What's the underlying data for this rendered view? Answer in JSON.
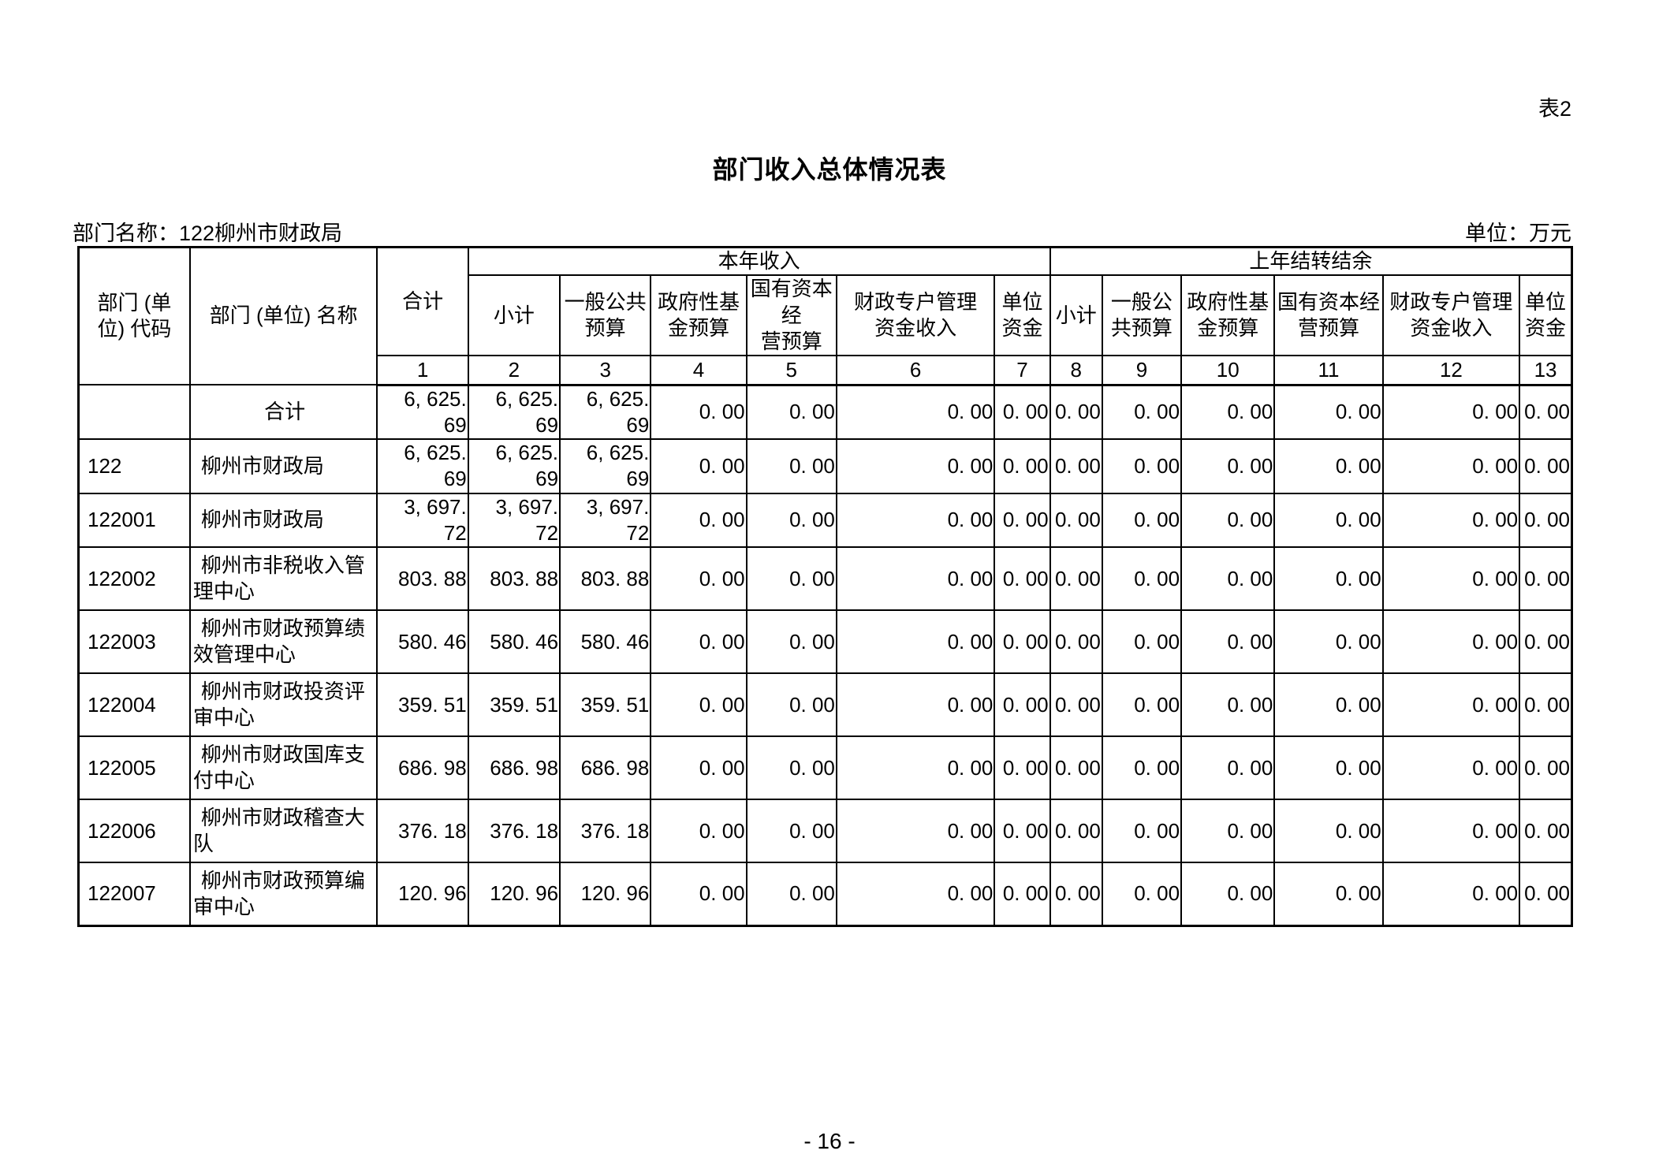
{
  "page": {
    "tag": "表2",
    "title": "部门收入总体情况表",
    "dept_label": "部门名称：122柳州市财政局",
    "unit_label": "单位：万元",
    "footer": "- 16 -"
  },
  "table": {
    "header": {
      "code": "部门 (单\n位) 代码",
      "name": "部门 (单位) 名称",
      "total": "合计",
      "group_current": "本年收入",
      "group_carryover": "上年结转结余",
      "sub_current": [
        "小计",
        "一般公共\n预算",
        "政府性基\n金预算",
        "国有资本经\n营预算",
        "财政专户管理\n资金收入",
        "单位\n资金"
      ],
      "sub_carryover": [
        "小计",
        "一般公\n共预算",
        "政府性基\n金预算",
        "国有资本经\n营预算",
        "财政专户管理\n资金收入",
        "单位\n资金"
      ],
      "col_numbers": [
        "1",
        "2",
        "3",
        "4",
        "5",
        "6",
        "7",
        "8",
        "9",
        "10",
        "11",
        "12",
        "13"
      ]
    },
    "rows": [
      {
        "code": "",
        "name": "合计",
        "name_align": "center",
        "values": [
          "6, 625. 69",
          "6, 625. 69",
          "6, 625. 69",
          "0. 00",
          "0. 00",
          "0. 00",
          "0. 00",
          "0. 00",
          "0. 00",
          "0. 00",
          "0. 00",
          "0. 00",
          "0. 00"
        ]
      },
      {
        "code": "122",
        "name": "柳州市财政局",
        "name_align": "left",
        "values": [
          "6, 625. 69",
          "6, 625. 69",
          "6, 625. 69",
          "0. 00",
          "0. 00",
          "0. 00",
          "0. 00",
          "0. 00",
          "0. 00",
          "0. 00",
          "0. 00",
          "0. 00",
          "0. 00"
        ]
      },
      {
        "code": "122001",
        "name": "柳州市财政局",
        "name_align": "left",
        "values": [
          "3, 697. 72",
          "3, 697. 72",
          "3, 697. 72",
          "0. 00",
          "0. 00",
          "0. 00",
          "0. 00",
          "0. 00",
          "0. 00",
          "0. 00",
          "0. 00",
          "0. 00",
          "0. 00"
        ]
      },
      {
        "code": "122002",
        "name": "柳州市非税收入管\n理中心",
        "name_align": "left",
        "values": [
          "803. 88",
          "803. 88",
          "803. 88",
          "0. 00",
          "0. 00",
          "0. 00",
          "0. 00",
          "0. 00",
          "0. 00",
          "0. 00",
          "0. 00",
          "0. 00",
          "0. 00"
        ]
      },
      {
        "code": "122003",
        "name": "柳州市财政预算绩\n效管理中心",
        "name_align": "left",
        "values": [
          "580. 46",
          "580. 46",
          "580. 46",
          "0. 00",
          "0. 00",
          "0. 00",
          "0. 00",
          "0. 00",
          "0. 00",
          "0. 00",
          "0. 00",
          "0. 00",
          "0. 00"
        ]
      },
      {
        "code": "122004",
        "name": "柳州市财政投资评\n审中心",
        "name_align": "left",
        "values": [
          "359. 51",
          "359. 51",
          "359. 51",
          "0. 00",
          "0. 00",
          "0. 00",
          "0. 00",
          "0. 00",
          "0. 00",
          "0. 00",
          "0. 00",
          "0. 00",
          "0. 00"
        ]
      },
      {
        "code": "122005",
        "name": "柳州市财政国库支\n付中心",
        "name_align": "left",
        "values": [
          "686. 98",
          "686. 98",
          "686. 98",
          "0. 00",
          "0. 00",
          "0. 00",
          "0. 00",
          "0. 00",
          "0. 00",
          "0. 00",
          "0. 00",
          "0. 00",
          "0. 00"
        ]
      },
      {
        "code": "122006",
        "name": "柳州市财政稽查大\n队",
        "name_align": "left",
        "values": [
          "376. 18",
          "376. 18",
          "376. 18",
          "0. 00",
          "0. 00",
          "0. 00",
          "0. 00",
          "0. 00",
          "0. 00",
          "0. 00",
          "0. 00",
          "0. 00",
          "0. 00"
        ]
      },
      {
        "code": "122007",
        "name": "柳州市财政预算编\n审中心",
        "name_align": "left",
        "values": [
          "120. 96",
          "120. 96",
          "120. 96",
          "0. 00",
          "0. 00",
          "0. 00",
          "0. 00",
          "0. 00",
          "0. 00",
          "0. 00",
          "0. 00",
          "0. 00",
          "0. 00"
        ]
      }
    ]
  }
}
